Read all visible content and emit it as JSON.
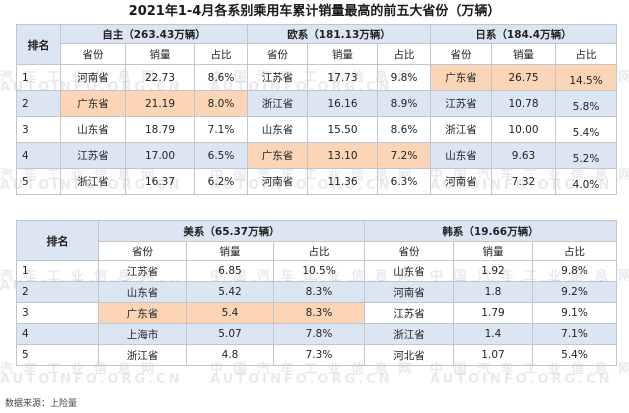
{
  "title": "2021年1-4月各系别乘用车累计销量最高的前五大省份（万辆）",
  "rank_header": "排名",
  "col_labels": {
    "province": "省份",
    "sales": "销量",
    "share": "占比"
  },
  "table1": {
    "groups": [
      "自主（263.43万辆）",
      "欧系（181.13万辆）",
      "日系（184.4万辆）"
    ],
    "rows": [
      {
        "rank": "1",
        "cells": [
          [
            "河南省",
            "22.73",
            "8.6%"
          ],
          [
            "江苏省",
            "17.73",
            "9.8%"
          ],
          [
            "广东省",
            "26.75",
            "14.5%"
          ]
        ]
      },
      {
        "rank": "2",
        "cells": [
          [
            "广东省",
            "21.19",
            "8.0%"
          ],
          [
            "浙江省",
            "16.16",
            "8.9%"
          ],
          [
            "江苏省",
            "10.78",
            "5.8%"
          ]
        ]
      },
      {
        "rank": "3",
        "cells": [
          [
            "山东省",
            "18.79",
            "7.1%"
          ],
          [
            "山东省",
            "15.50",
            "8.6%"
          ],
          [
            "浙江省",
            "10.00",
            "5.4%"
          ]
        ]
      },
      {
        "rank": "4",
        "cells": [
          [
            "江苏省",
            "17.00",
            "6.5%"
          ],
          [
            "广东省",
            "13.10",
            "7.2%"
          ],
          [
            "山东省",
            "9.63",
            "5.2%"
          ]
        ]
      },
      {
        "rank": "5",
        "cells": [
          [
            "浙江省",
            "16.37",
            "6.2%"
          ],
          [
            "河南省",
            "11.36",
            "6.3%"
          ],
          [
            "河南省",
            "7.32",
            "4.0%"
          ]
        ]
      }
    ]
  },
  "table2": {
    "groups": [
      "美系（65.37万辆）",
      "韩系（19.66万辆）"
    ],
    "rows": [
      {
        "rank": "1",
        "cells": [
          [
            "江苏省",
            "6.85",
            "10.5%"
          ],
          [
            "山东省",
            "1.92",
            "9.8%"
          ]
        ]
      },
      {
        "rank": "2",
        "cells": [
          [
            "山东省",
            "5.42",
            "8.3%"
          ],
          [
            "河南省",
            "1.8",
            "9.2%"
          ]
        ]
      },
      {
        "rank": "3",
        "cells": [
          [
            "广东省",
            "5.4",
            "8.3%"
          ],
          [
            "江苏省",
            "1.79",
            "9.1%"
          ]
        ]
      },
      {
        "rank": "4",
        "cells": [
          [
            "上海市",
            "5.07",
            "7.8%"
          ],
          [
            "浙江省",
            "1.4",
            "7.1%"
          ]
        ]
      },
      {
        "rank": "5",
        "cells": [
          [
            "浙江省",
            "4.8",
            "7.3%"
          ],
          [
            "河北省",
            "1.07",
            "5.4%"
          ]
        ]
      }
    ]
  },
  "source": "数据来源：上险量",
  "watermark_cn": "汽 车 工 业 信 息 网",
  "watermark_cn2": "中 国 汽 车 工 业 信 息 网",
  "watermark_en": "AUTOINFO.ORG.CN"
}
